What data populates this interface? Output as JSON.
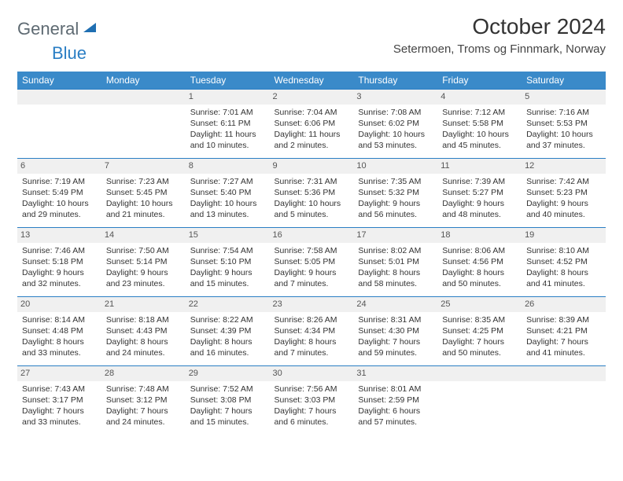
{
  "brand": {
    "part1": "General",
    "part2": "Blue"
  },
  "title": "October 2024",
  "location": "Setermoen, Troms og Finnmark, Norway",
  "colors": {
    "header_bg": "#3a8ac9",
    "border": "#2a7ec4",
    "daynum_bg": "#f0f0f0",
    "text": "#333333",
    "logo_gray": "#5e6a72",
    "logo_blue": "#2a7ec4"
  },
  "weekdays": [
    "Sunday",
    "Monday",
    "Tuesday",
    "Wednesday",
    "Thursday",
    "Friday",
    "Saturday"
  ],
  "weeks": [
    [
      null,
      null,
      {
        "n": "1",
        "sr": "7:01 AM",
        "ss": "6:11 PM",
        "dl": "11 hours and 10 minutes."
      },
      {
        "n": "2",
        "sr": "7:04 AM",
        "ss": "6:06 PM",
        "dl": "11 hours and 2 minutes."
      },
      {
        "n": "3",
        "sr": "7:08 AM",
        "ss": "6:02 PM",
        "dl": "10 hours and 53 minutes."
      },
      {
        "n": "4",
        "sr": "7:12 AM",
        "ss": "5:58 PM",
        "dl": "10 hours and 45 minutes."
      },
      {
        "n": "5",
        "sr": "7:16 AM",
        "ss": "5:53 PM",
        "dl": "10 hours and 37 minutes."
      }
    ],
    [
      {
        "n": "6",
        "sr": "7:19 AM",
        "ss": "5:49 PM",
        "dl": "10 hours and 29 minutes."
      },
      {
        "n": "7",
        "sr": "7:23 AM",
        "ss": "5:45 PM",
        "dl": "10 hours and 21 minutes."
      },
      {
        "n": "8",
        "sr": "7:27 AM",
        "ss": "5:40 PM",
        "dl": "10 hours and 13 minutes."
      },
      {
        "n": "9",
        "sr": "7:31 AM",
        "ss": "5:36 PM",
        "dl": "10 hours and 5 minutes."
      },
      {
        "n": "10",
        "sr": "7:35 AM",
        "ss": "5:32 PM",
        "dl": "9 hours and 56 minutes."
      },
      {
        "n": "11",
        "sr": "7:39 AM",
        "ss": "5:27 PM",
        "dl": "9 hours and 48 minutes."
      },
      {
        "n": "12",
        "sr": "7:42 AM",
        "ss": "5:23 PM",
        "dl": "9 hours and 40 minutes."
      }
    ],
    [
      {
        "n": "13",
        "sr": "7:46 AM",
        "ss": "5:18 PM",
        "dl": "9 hours and 32 minutes."
      },
      {
        "n": "14",
        "sr": "7:50 AM",
        "ss": "5:14 PM",
        "dl": "9 hours and 23 minutes."
      },
      {
        "n": "15",
        "sr": "7:54 AM",
        "ss": "5:10 PM",
        "dl": "9 hours and 15 minutes."
      },
      {
        "n": "16",
        "sr": "7:58 AM",
        "ss": "5:05 PM",
        "dl": "9 hours and 7 minutes."
      },
      {
        "n": "17",
        "sr": "8:02 AM",
        "ss": "5:01 PM",
        "dl": "8 hours and 58 minutes."
      },
      {
        "n": "18",
        "sr": "8:06 AM",
        "ss": "4:56 PM",
        "dl": "8 hours and 50 minutes."
      },
      {
        "n": "19",
        "sr": "8:10 AM",
        "ss": "4:52 PM",
        "dl": "8 hours and 41 minutes."
      }
    ],
    [
      {
        "n": "20",
        "sr": "8:14 AM",
        "ss": "4:48 PM",
        "dl": "8 hours and 33 minutes."
      },
      {
        "n": "21",
        "sr": "8:18 AM",
        "ss": "4:43 PM",
        "dl": "8 hours and 24 minutes."
      },
      {
        "n": "22",
        "sr": "8:22 AM",
        "ss": "4:39 PM",
        "dl": "8 hours and 16 minutes."
      },
      {
        "n": "23",
        "sr": "8:26 AM",
        "ss": "4:34 PM",
        "dl": "8 hours and 7 minutes."
      },
      {
        "n": "24",
        "sr": "8:31 AM",
        "ss": "4:30 PM",
        "dl": "7 hours and 59 minutes."
      },
      {
        "n": "25",
        "sr": "8:35 AM",
        "ss": "4:25 PM",
        "dl": "7 hours and 50 minutes."
      },
      {
        "n": "26",
        "sr": "8:39 AM",
        "ss": "4:21 PM",
        "dl": "7 hours and 41 minutes."
      }
    ],
    [
      {
        "n": "27",
        "sr": "7:43 AM",
        "ss": "3:17 PM",
        "dl": "7 hours and 33 minutes."
      },
      {
        "n": "28",
        "sr": "7:48 AM",
        "ss": "3:12 PM",
        "dl": "7 hours and 24 minutes."
      },
      {
        "n": "29",
        "sr": "7:52 AM",
        "ss": "3:08 PM",
        "dl": "7 hours and 15 minutes."
      },
      {
        "n": "30",
        "sr": "7:56 AM",
        "ss": "3:03 PM",
        "dl": "7 hours and 6 minutes."
      },
      {
        "n": "31",
        "sr": "8:01 AM",
        "ss": "2:59 PM",
        "dl": "6 hours and 57 minutes."
      },
      null,
      null
    ]
  ],
  "labels": {
    "sunrise": "Sunrise:",
    "sunset": "Sunset:",
    "daylight": "Daylight:"
  }
}
